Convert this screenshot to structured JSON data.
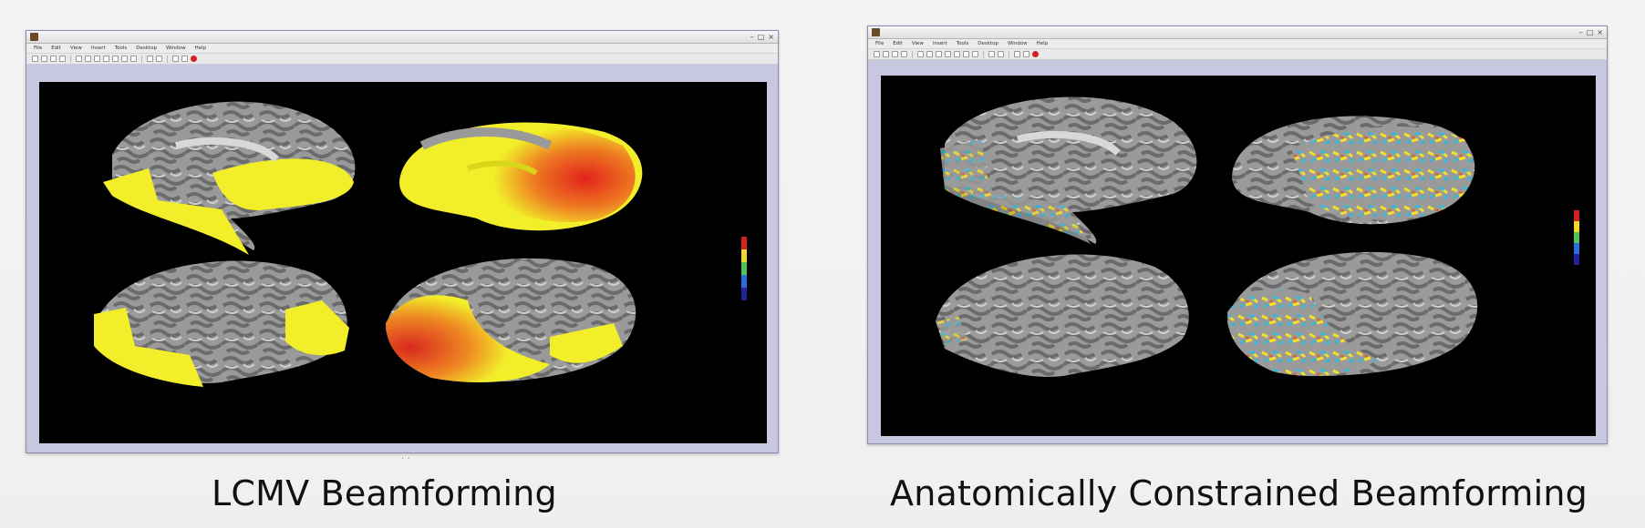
{
  "left_panel": {
    "caption": "LCMV Beamforming",
    "window": {
      "menu": [
        "File",
        "Edit",
        "View",
        "Insert",
        "Tools",
        "Desktop",
        "Window",
        "Help"
      ],
      "close_glyph": "×",
      "minimize_glyph": "–",
      "maximize_glyph": "□"
    },
    "colors": {
      "activation_low": "#f2ee2a",
      "activation_high": "#e2231a"
    }
  },
  "right_panel": {
    "caption": "Anatomically Constrained Beamforming",
    "window": {
      "menu": [
        "File",
        "Edit",
        "View",
        "Insert",
        "Tools",
        "Desktop",
        "Window",
        "Help"
      ],
      "close_glyph": "×",
      "minimize_glyph": "–",
      "maximize_glyph": "□"
    },
    "colors": {
      "activation_pos": "#f2e02a",
      "activation_neg": "#3fb6d3"
    }
  },
  "colorbar": [
    "#d32020",
    "#f2d72a",
    "#4cc45a",
    "#2a6de0",
    "#22229a"
  ]
}
